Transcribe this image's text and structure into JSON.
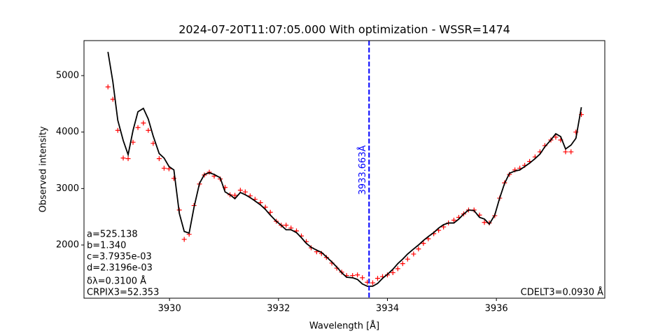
{
  "chart_data": {
    "type": "line",
    "title": "2024-07-20T11:07:05.000 With optimization - WSSR=1474",
    "xlabel": "Wavelength [Å]",
    "ylabel": "Observed intensity",
    "x": [
      3928.87,
      3928.96,
      3929.05,
      3929.15,
      3929.24,
      3929.33,
      3929.42,
      3929.52,
      3929.61,
      3929.7,
      3929.81,
      3929.9,
      3929.99,
      3930.08,
      3930.18,
      3930.27,
      3930.36,
      3930.45,
      3930.55,
      3930.64,
      3930.73,
      3930.82,
      3930.93,
      3931.02,
      3931.11,
      3931.2,
      3931.3,
      3931.39,
      3931.48,
      3931.57,
      3931.67,
      3931.76,
      3931.85,
      3931.96,
      3932.05,
      3932.14,
      3932.23,
      3932.33,
      3932.42,
      3932.51,
      3932.6,
      3932.7,
      3932.79,
      3932.88,
      3932.98,
      3933.07,
      3933.16,
      3933.25,
      3933.36,
      3933.45,
      3933.54,
      3933.63,
      3933.73,
      3933.82,
      3933.91,
      3934.0,
      3934.1,
      3934.19,
      3934.28,
      3934.37,
      3934.48,
      3934.57,
      3934.66,
      3934.75,
      3934.85,
      3934.94,
      3935.03,
      3935.12,
      3935.22,
      3935.31,
      3935.4,
      3935.49,
      3935.59,
      3935.69,
      3935.78,
      3935.87,
      3935.97,
      3936.06,
      3936.15,
      3936.24,
      3936.34,
      3936.43,
      3936.52,
      3936.61,
      3936.71,
      3936.8,
      3936.89,
      3937.0,
      3937.09,
      3937.18,
      3937.27,
      3937.37,
      3937.46,
      3937.56
    ],
    "series": [
      {
        "color": "#ff0000",
        "marker": "+",
        "values": [
          4800,
          4580,
          4030,
          3540,
          3530,
          3820,
          4080,
          4160,
          4030,
          3800,
          3530,
          3360,
          3350,
          3180,
          2620,
          2100,
          2190,
          2700,
          3080,
          3240,
          3290,
          3220,
          3170,
          3020,
          2890,
          2880,
          2970,
          2940,
          2870,
          2810,
          2750,
          2670,
          2580,
          2420,
          2350,
          2350,
          2300,
          2250,
          2160,
          2060,
          1950,
          1880,
          1850,
          1780,
          1680,
          1590,
          1520,
          1460,
          1460,
          1470,
          1420,
          1340,
          1330,
          1410,
          1440,
          1470,
          1510,
          1580,
          1670,
          1750,
          1840,
          1930,
          2030,
          2110,
          2200,
          2260,
          2320,
          2390,
          2440,
          2490,
          2550,
          2620,
          2620,
          2530,
          2400,
          2390,
          2520,
          2830,
          3100,
          3250,
          3330,
          3360,
          3410,
          3480,
          3560,
          3650,
          3760,
          3860,
          3910,
          3860,
          3650,
          3650,
          4000,
          4310
        ]
      },
      {
        "color": "#000000",
        "marker": "none",
        "values": [
          5420,
          4890,
          4210,
          3850,
          3600,
          4030,
          4360,
          4420,
          4230,
          3930,
          3620,
          3540,
          3390,
          3330,
          2560,
          2240,
          2210,
          2670,
          3090,
          3250,
          3280,
          3250,
          3190,
          2940,
          2890,
          2820,
          2930,
          2890,
          2840,
          2780,
          2710,
          2630,
          2530,
          2420,
          2350,
          2270,
          2270,
          2220,
          2130,
          2030,
          1960,
          1910,
          1870,
          1790,
          1700,
          1610,
          1510,
          1430,
          1420,
          1390,
          1310,
          1270,
          1270,
          1320,
          1410,
          1480,
          1570,
          1670,
          1750,
          1840,
          1930,
          2000,
          2080,
          2150,
          2220,
          2300,
          2360,
          2390,
          2390,
          2460,
          2550,
          2620,
          2610,
          2490,
          2460,
          2370,
          2530,
          2830,
          3090,
          3270,
          3310,
          3330,
          3390,
          3450,
          3530,
          3610,
          3740,
          3860,
          3970,
          3920,
          3700,
          3770,
          3890,
          4440
        ]
      }
    ],
    "vlines": [
      {
        "x": 3933.663,
        "label": "3933.663Å",
        "color": "#0000ff"
      }
    ],
    "annotations": [
      "a=525.138",
      "b=1.340",
      "c=3.7935e-03",
      "d=2.3196e-03",
      "δλ=0.3100 Å",
      "CRPIX3=52.353"
    ],
    "annotation_right": "CDELT3=0.0930 Å",
    "xlim": [
      3928.43,
      3937.99
    ],
    "ylim": [
      1058,
      5620
    ],
    "xticks": [
      3930,
      3932,
      3934,
      3936
    ],
    "yticks": [
      2000,
      3000,
      4000,
      5000
    ],
    "grid": false
  }
}
